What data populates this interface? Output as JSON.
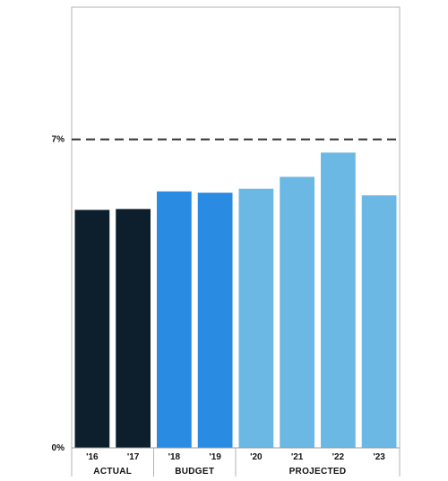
{
  "chart_data": {
    "type": "bar",
    "categories": [
      "'16",
      "'17",
      "'18",
      "'19",
      "'20",
      "'21",
      "'22",
      "'23"
    ],
    "values": [
      5.4,
      5.42,
      5.82,
      5.79,
      5.88,
      6.15,
      6.7,
      5.73
    ],
    "groups": [
      {
        "label": "ACTUAL",
        "color": "#0d1f2d",
        "count": 2
      },
      {
        "label": "BUDGET",
        "color": "#2a8be2",
        "count": 2
      },
      {
        "label": "PROJECTED",
        "color": "#6cb8e4",
        "count": 4
      }
    ],
    "reference_line": {
      "value": 7,
      "style": "dashed",
      "color": "#333333"
    },
    "y_ticks": [
      {
        "value": 0,
        "label": "0%"
      },
      {
        "value": 7,
        "label": "7%"
      }
    ],
    "ylim": [
      0,
      10
    ],
    "title": "",
    "xlabel": "",
    "ylabel": "",
    "grid": false
  }
}
